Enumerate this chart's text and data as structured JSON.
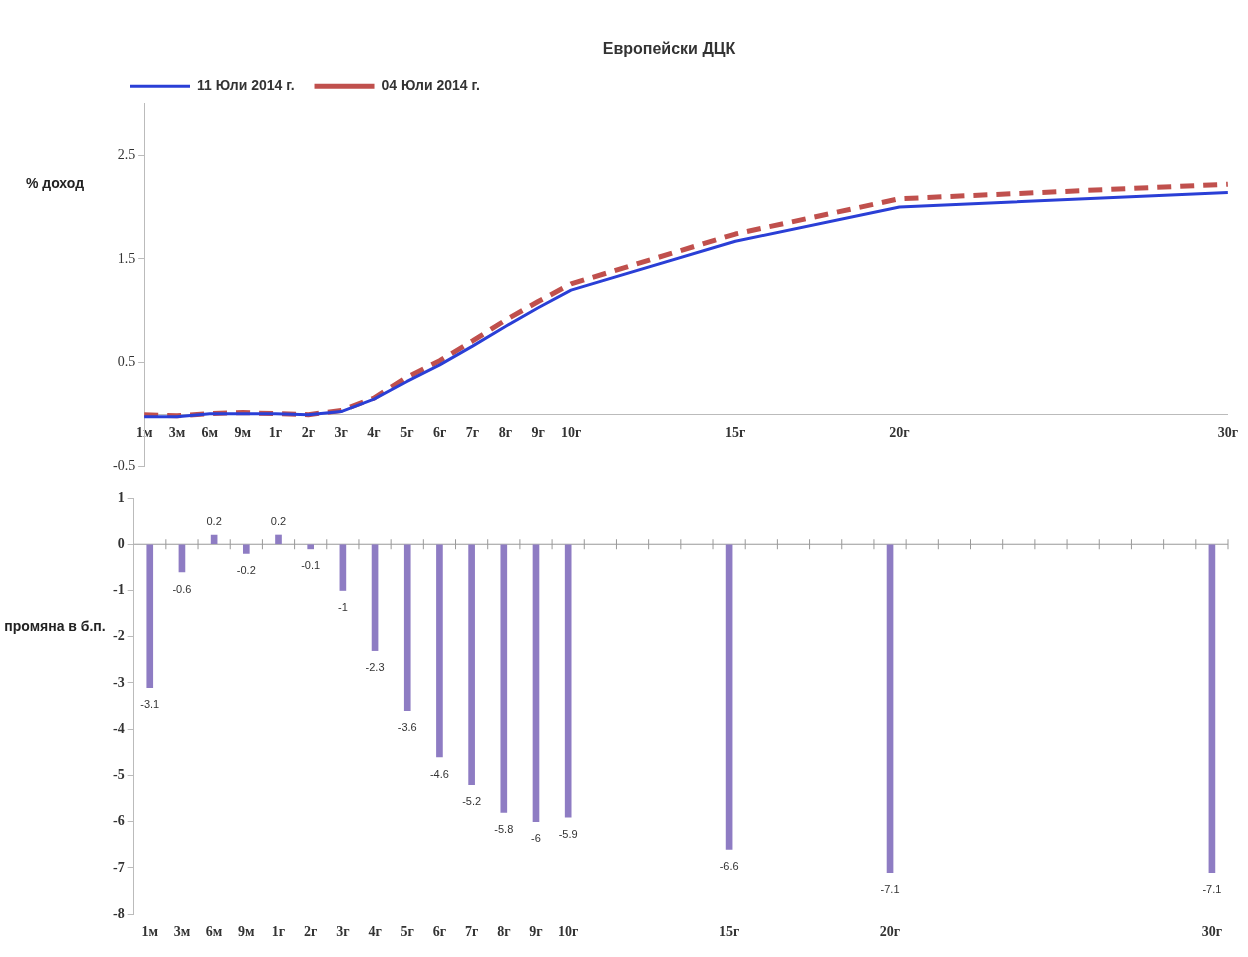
{
  "chart_data": [
    {
      "type": "line",
      "title": "Европейски ДЦК",
      "ylabel": "% доход",
      "categories": [
        "1м",
        "3м",
        "6м",
        "9м",
        "1г",
        "2г",
        "3г",
        "4г",
        "5г",
        "6г",
        "7г",
        "8г",
        "9г",
        "10г",
        null,
        null,
        null,
        null,
        "15г",
        null,
        null,
        null,
        null,
        "20г",
        null,
        null,
        null,
        null,
        null,
        null,
        null,
        null,
        null,
        "30г"
      ],
      "series": [
        {
          "name": "11 Юли 2014 г.",
          "color": "#2a3fd6",
          "line_style": "solid",
          "values": [
            -0.02,
            -0.02,
            0.01,
            0.01,
            0.01,
            0.0,
            0.03,
            0.15,
            0.32,
            0.48,
            0.66,
            0.85,
            1.03,
            1.2,
            null,
            null,
            null,
            null,
            1.67,
            null,
            null,
            null,
            null,
            2.0,
            null,
            null,
            null,
            null,
            null,
            null,
            null,
            null,
            null,
            2.14
          ]
        },
        {
          "name": "04 Юли 2014 г.",
          "color": "#c0504d",
          "line_style": "dashed",
          "values": [
            0.0,
            -0.01,
            0.01,
            0.02,
            0.01,
            0.0,
            0.04,
            0.16,
            0.36,
            0.52,
            0.71,
            0.91,
            1.09,
            1.26,
            null,
            null,
            null,
            null,
            1.74,
            null,
            null,
            null,
            null,
            2.08,
            null,
            null,
            null,
            null,
            null,
            null,
            null,
            null,
            null,
            2.22
          ]
        }
      ],
      "ylim": [
        -0.5,
        3
      ],
      "yticks": [
        -0.5,
        0.5,
        1.5,
        2.5
      ],
      "legend": "top left",
      "marker": "none"
    },
    {
      "type": "bar",
      "ylabel": "промяна в б.п.",
      "categories": [
        "1м",
        "3м",
        "6м",
        "9м",
        "1г",
        "2г",
        "3г",
        "4г",
        "5г",
        "6г",
        "7г",
        "8г",
        "9г",
        "10г",
        null,
        null,
        null,
        null,
        "15г",
        null,
        null,
        null,
        null,
        "20г",
        null,
        null,
        null,
        null,
        null,
        null,
        null,
        null,
        null,
        "30г"
      ],
      "values": [
        -3.1,
        -0.6,
        0.2,
        -0.2,
        0.2,
        -0.1,
        -1,
        -2.3,
        -3.6,
        -4.6,
        -5.2,
        -5.8,
        -6,
        -5.9,
        null,
        null,
        null,
        null,
        -6.6,
        null,
        null,
        null,
        null,
        -7.1,
        null,
        null,
        null,
        null,
        null,
        null,
        null,
        null,
        null,
        -7.1
      ],
      "color": "#8e7cc3",
      "ylim": [
        -8,
        1
      ],
      "yticks": [
        -8,
        -7,
        -6,
        -5,
        -4,
        -3,
        -2,
        -1,
        0,
        1
      ],
      "data_labels": true
    }
  ]
}
